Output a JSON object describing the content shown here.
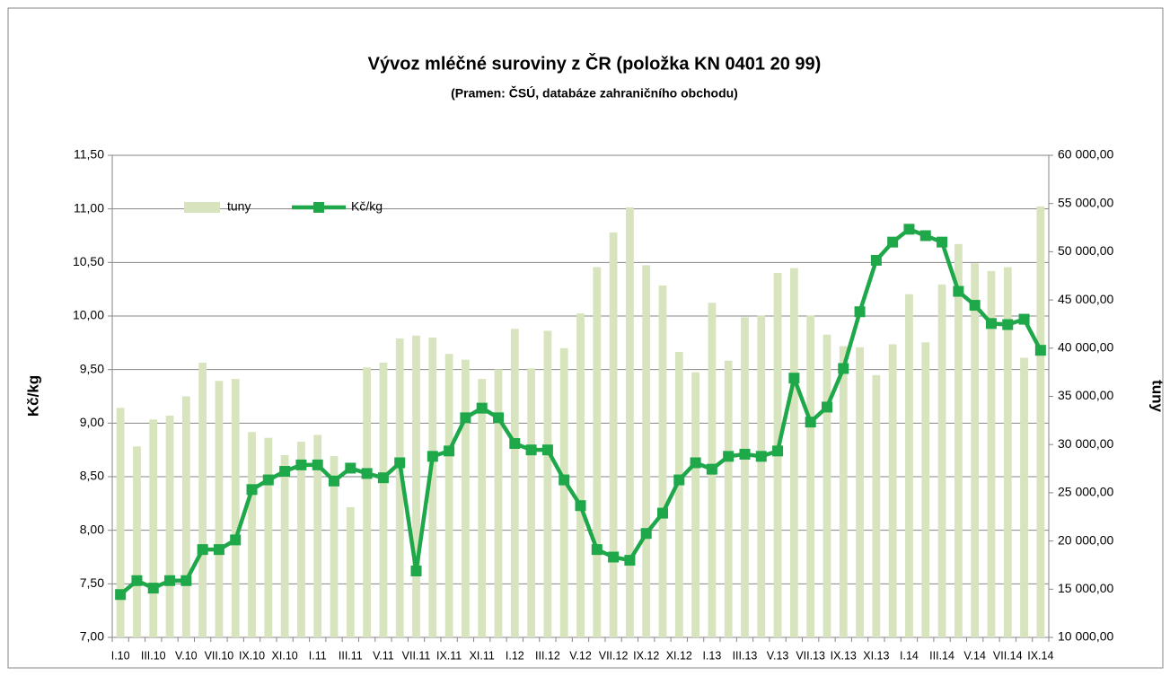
{
  "chart_data": {
    "type": "bar-line",
    "title": "Vývoz mléčné suroviny z ČR (položka KN 0401 20 99)",
    "subtitle": "(Pramen: ČSÚ, databáze zahraničního obchodu)",
    "y_label": "Kč/kg",
    "y2_label": "tuny",
    "categories": [
      "I.10",
      null,
      "III.10",
      null,
      "V.10",
      null,
      "VII.10",
      null,
      "IX.10",
      null,
      "XI.10",
      null,
      "I.11",
      null,
      "III.11",
      null,
      "V.11",
      null,
      "VII.11",
      null,
      "IX.11",
      null,
      "XI.11",
      null,
      "I.12",
      null,
      "III.12",
      null,
      "V.12",
      null,
      "VII.12",
      null,
      "IX.12",
      null,
      "XI.12",
      null,
      "I.13",
      null,
      "III.13",
      null,
      "V.13",
      null,
      "VII.13",
      null,
      "IX.13",
      null,
      "XI.13",
      null,
      "I.14",
      null,
      "III.14",
      null,
      "V.14",
      null,
      "VII.14",
      null,
      "IX.14"
    ],
    "series": [
      {
        "name": "tuny",
        "kind": "bar",
        "axis": "y2",
        "color": "#d7e4bd",
        "values": [
          33800,
          29800,
          32600,
          33000,
          35000,
          38500,
          36600,
          36800,
          31300,
          30700,
          28900,
          30300,
          31000,
          28800,
          23500,
          38000,
          38500,
          41000,
          41300,
          41100,
          39400,
          38800,
          36800,
          37800,
          42000,
          37900,
          41800,
          40000,
          43600,
          48400,
          52000,
          54600,
          48600,
          46500,
          39600,
          37500,
          44700,
          38700,
          43200,
          43400,
          47800,
          48300,
          43400,
          41400,
          40200,
          40100,
          37200,
          40400,
          45600,
          40600,
          46600,
          50800,
          48800,
          48000,
          48400,
          39000,
          54700
        ]
      },
      {
        "name": "Kč/kg",
        "kind": "line",
        "color": "#1ea84a",
        "values": [
          7.4,
          7.53,
          7.46,
          7.53,
          7.53,
          7.82,
          7.82,
          7.91,
          8.38,
          8.47,
          8.55,
          8.61,
          8.61,
          8.46,
          8.58,
          8.53,
          8.49,
          8.63,
          7.62,
          8.69,
          8.74,
          9.05,
          9.14,
          9.05,
          8.81,
          8.75,
          8.75,
          8.47,
          8.23,
          7.82,
          7.75,
          7.72,
          7.97,
          8.16,
          8.47,
          8.63,
          8.57,
          8.69,
          8.71,
          8.69,
          8.74,
          9.42,
          9.01,
          9.15,
          9.51,
          10.04,
          10.52,
          10.69,
          10.81,
          10.75,
          10.69,
          10.23,
          10.1,
          9.93,
          9.92,
          9.97,
          9.68
        ]
      }
    ],
    "ylim": [
      7,
      11.5
    ],
    "yticks": [
      {
        "value": 7,
        "label": "7,00"
      },
      {
        "value": 7.5,
        "label": "7,50"
      },
      {
        "value": 8,
        "label": "8,00"
      },
      {
        "value": 8.5,
        "label": "8,50"
      },
      {
        "value": 9,
        "label": "9,00"
      },
      {
        "value": 9.5,
        "label": "9,50"
      },
      {
        "value": 10,
        "label": "10,00"
      },
      {
        "value": 10.5,
        "label": "10,50"
      },
      {
        "value": 11,
        "label": "11,00"
      },
      {
        "value": 11.5,
        "label": "11,50"
      }
    ],
    "y2lim": [
      10000,
      60000
    ],
    "y2ticks": [
      {
        "value": 10000,
        "label": "10 000,00"
      },
      {
        "value": 15000,
        "label": "15 000,00"
      },
      {
        "value": 20000,
        "label": "20 000,00"
      },
      {
        "value": 25000,
        "label": "25 000,00"
      },
      {
        "value": 30000,
        "label": "30 000,00"
      },
      {
        "value": 35000,
        "label": "35 000,00"
      },
      {
        "value": 40000,
        "label": "40 000,00"
      },
      {
        "value": 45000,
        "label": "45 000,00"
      },
      {
        "value": 50000,
        "label": "50 000,00"
      },
      {
        "value": 55000,
        "label": "55 000,00"
      },
      {
        "value": 60000,
        "label": "60 000,00"
      }
    ],
    "grid": true,
    "legend": "top-left"
  }
}
